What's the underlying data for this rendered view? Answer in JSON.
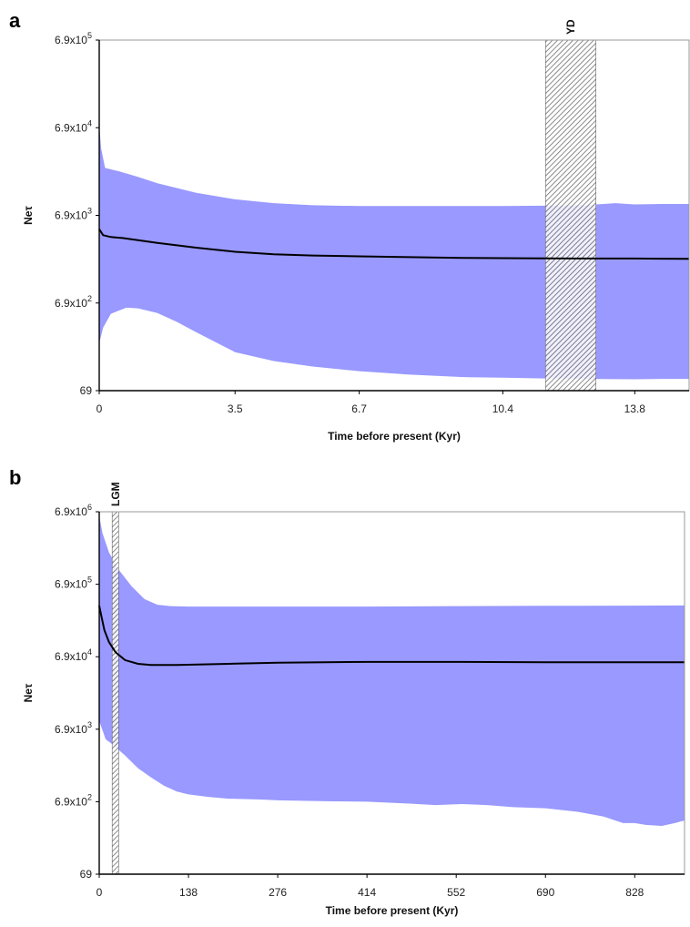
{
  "chart_data": [
    {
      "type": "area",
      "panel_label": "a",
      "xlabel": "Time before present (Kyr)",
      "ylabel": "Neτ",
      "log_y": true,
      "xlim": [
        0,
        15.2
      ],
      "ylim": [
        69,
        690000
      ],
      "x_ticks": [
        0,
        3.5,
        6.7,
        10.4,
        13.8
      ],
      "x_tick_labels": [
        "0",
        "3.5",
        "6.7",
        "10.4",
        "13.8"
      ],
      "y_ticks": [
        69,
        690,
        6900,
        69000,
        690000
      ],
      "y_tick_labels": [
        {
          "mant": "69",
          "exp": ""
        },
        {
          "mant": "6.9x10",
          "exp": "2"
        },
        {
          "mant": "6.9x10",
          "exp": "3"
        },
        {
          "mant": "6.9x10",
          "exp": "4"
        },
        {
          "mant": "6.9x10",
          "exp": "5"
        }
      ],
      "colors": {
        "band": "#9999ff",
        "median": "#000000",
        "shade": "#666666"
      },
      "shaded_region": {
        "label": "YD",
        "x_start": 11.5,
        "x_end": 12.8
      },
      "series": [
        {
          "role": "median",
          "x": [
            0,
            0.1,
            0.3,
            0.6,
            1.0,
            1.5,
            2.5,
            3.5,
            4.5,
            5.5,
            6.7,
            8.0,
            9.5,
            10.4,
            11.5,
            12.5,
            13.8,
            14.5,
            15.2
          ],
          "y": [
            4800,
            4100,
            3900,
            3800,
            3600,
            3350,
            2950,
            2650,
            2480,
            2400,
            2350,
            2300,
            2250,
            2240,
            2230,
            2220,
            2220,
            2210,
            2200
          ]
        },
        {
          "role": "upper",
          "x": [
            0,
            0.05,
            0.15,
            0.5,
            1.0,
            1.5,
            2.5,
            3.5,
            4.5,
            5.5,
            6.7,
            8.0,
            9.5,
            10.4,
            11.5,
            12.5,
            13.3,
            13.8,
            14.5,
            15.2
          ],
          "y": [
            75000,
            40000,
            24000,
            22000,
            19000,
            16000,
            12500,
            10500,
            9500,
            9000,
            8800,
            8800,
            8800,
            8800,
            8900,
            9000,
            9500,
            9200,
            9300,
            9300
          ]
        },
        {
          "role": "lower",
          "x": [
            0,
            0.1,
            0.3,
            0.7,
            1.0,
            1.5,
            2.0,
            2.5,
            3.5,
            4.5,
            5.5,
            6.7,
            8.0,
            9.5,
            10.4,
            11.5,
            12.5,
            13.8,
            14.5,
            15.2
          ],
          "y": [
            240,
            360,
            520,
            610,
            600,
            530,
            420,
            320,
            190,
            150,
            130,
            115,
            105,
            98,
            97,
            95,
            94,
            93,
            94,
            94
          ]
        }
      ]
    },
    {
      "type": "area",
      "panel_label": "b",
      "xlabel": "Time before present (Kyr)",
      "ylabel": "Neτ",
      "log_y": true,
      "xlim": [
        0,
        905
      ],
      "ylim": [
        69,
        6900000
      ],
      "x_ticks": [
        0,
        138,
        276,
        414,
        552,
        690,
        828
      ],
      "x_tick_labels": [
        "0",
        "138",
        "276",
        "414",
        "552",
        "690",
        "828"
      ],
      "y_ticks": [
        69,
        690,
        6900,
        69000,
        690000,
        6900000
      ],
      "y_tick_labels": [
        {
          "mant": "69",
          "exp": ""
        },
        {
          "mant": "6.9x10",
          "exp": "2"
        },
        {
          "mant": "6.9x10",
          "exp": "3"
        },
        {
          "mant": "6.9x10",
          "exp": "4"
        },
        {
          "mant": "6.9x10",
          "exp": "5"
        },
        {
          "mant": "6.9x10",
          "exp": "6"
        }
      ],
      "colors": {
        "band": "#9999ff",
        "median": "#000000",
        "shade": "#666666"
      },
      "shaded_region": {
        "label": "LGM",
        "x_start": 20,
        "x_end": 30
      },
      "series": [
        {
          "role": "median",
          "x": [
            0,
            3,
            8,
            15,
            25,
            40,
            60,
            80,
            120,
            200,
            276,
            350,
            414,
            552,
            690,
            828,
            905
          ],
          "y": [
            350000,
            260000,
            160000,
            110000,
            80000,
            62000,
            55000,
            53000,
            53000,
            55000,
            57000,
            58000,
            58500,
            58500,
            58000,
            58000,
            58000
          ]
        },
        {
          "role": "upper",
          "x": [
            0,
            5,
            15,
            30,
            50,
            70,
            90,
            110,
            138,
            200,
            276,
            414,
            552,
            690,
            828,
            905
          ],
          "y": [
            6000000,
            3500000,
            1900000,
            1100000,
            650000,
            430000,
            360000,
            345000,
            340000,
            340000,
            340000,
            340000,
            345000,
            348000,
            350000,
            352000
          ]
        },
        {
          "role": "lower",
          "x": [
            0,
            10,
            20,
            40,
            60,
            80,
            100,
            120,
            138,
            170,
            200,
            250,
            276,
            350,
            414,
            480,
            520,
            560,
            600,
            640,
            690,
            740,
            780,
            810,
            828,
            845,
            870,
            890,
            905
          ],
          "y": [
            9000,
            5000,
            4300,
            3000,
            2000,
            1500,
            1150,
            950,
            870,
            800,
            760,
            740,
            720,
            700,
            690,
            650,
            620,
            640,
            620,
            580,
            560,
            500,
            430,
            350,
            350,
            330,
            320,
            350,
            380
          ]
        }
      ]
    }
  ]
}
